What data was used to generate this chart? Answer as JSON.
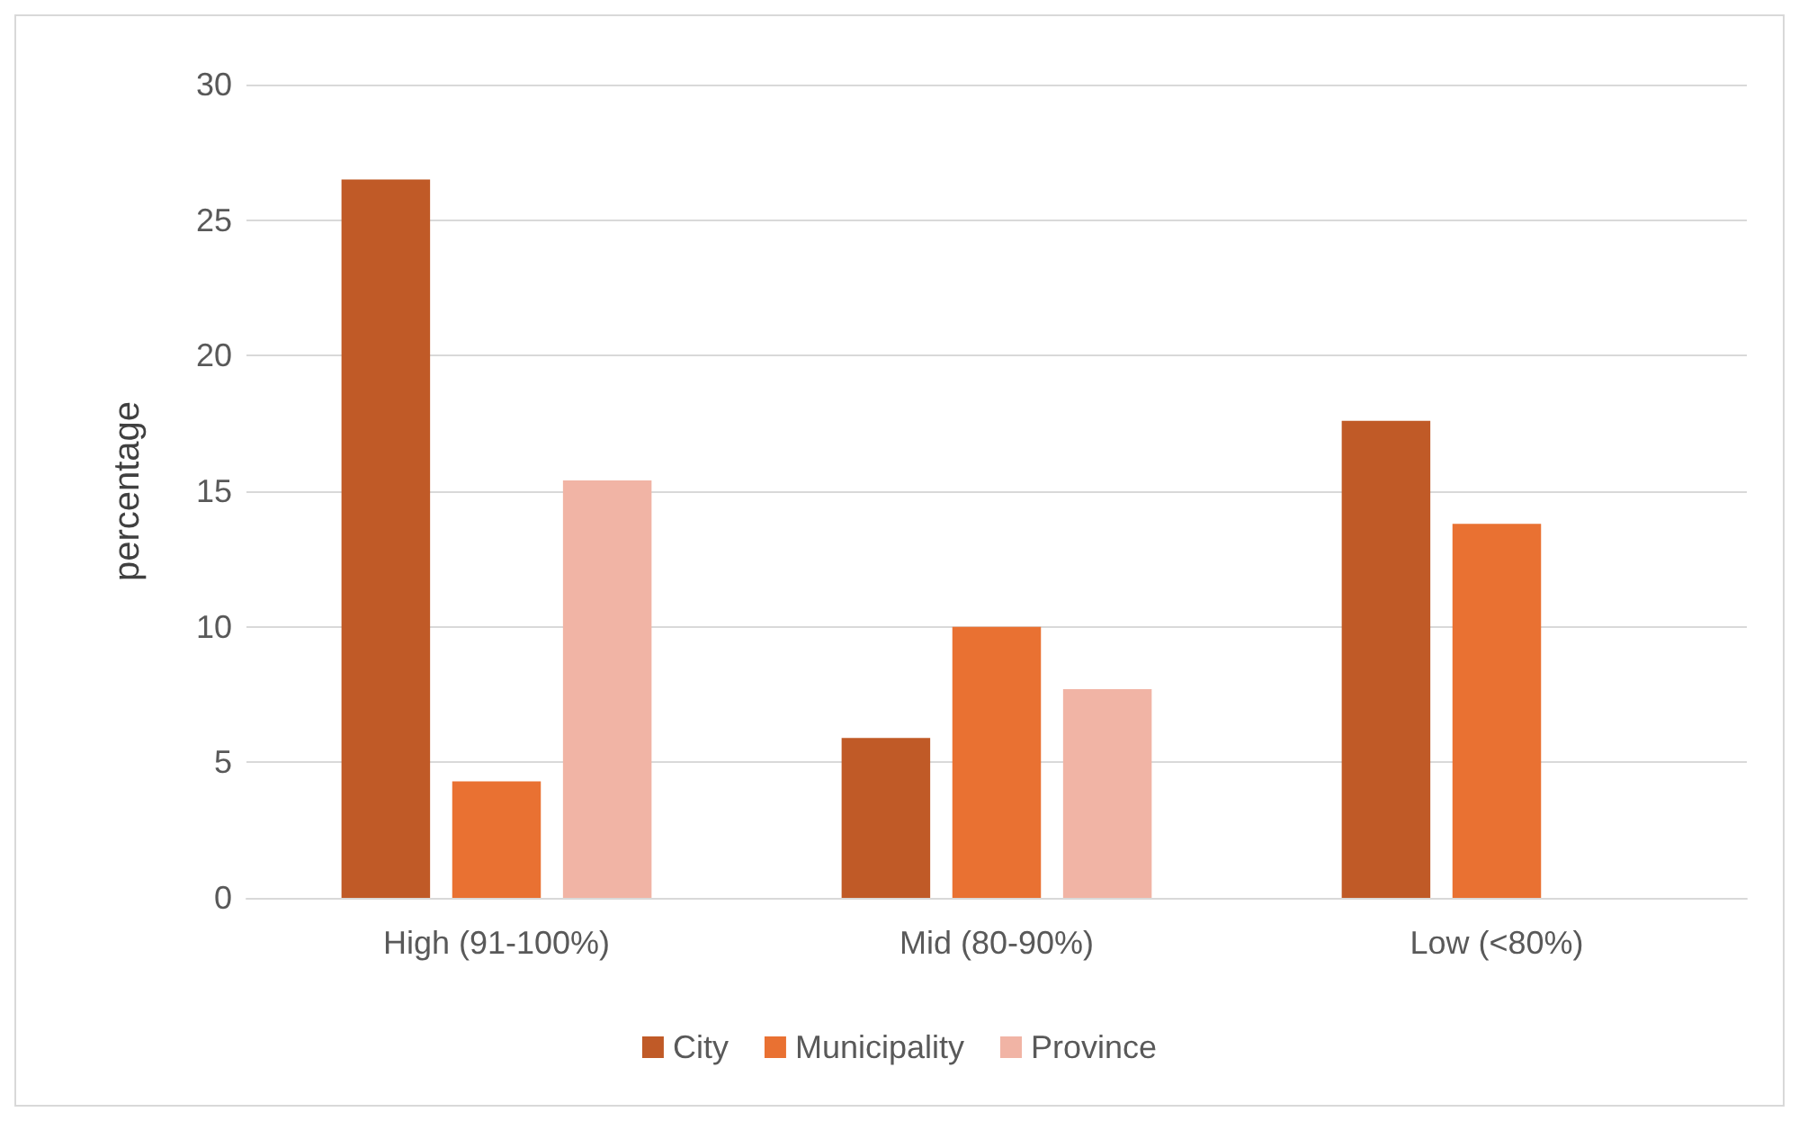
{
  "chart_data": {
    "type": "bar",
    "ylabel": "percentage",
    "categories": [
      "High (91-100%)",
      "Mid (80-90%)",
      "Low (<80%)"
    ],
    "series": [
      {
        "name": "City",
        "color": "#c05a27",
        "values": [
          26.5,
          5.9,
          17.6
        ]
      },
      {
        "name": "Municipality",
        "color": "#e97132",
        "values": [
          4.3,
          10.0,
          13.8
        ]
      },
      {
        "name": "Province",
        "color": "#f1b4a5",
        "values": [
          15.4,
          7.7,
          0
        ]
      }
    ],
    "ylim": [
      0,
      30
    ],
    "yticks": [
      0,
      5,
      10,
      15,
      20,
      25,
      30
    ],
    "grid": "y",
    "legend": "bottom"
  }
}
